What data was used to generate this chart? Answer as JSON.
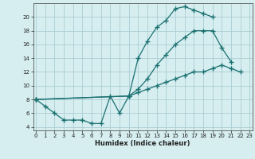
{
  "xlabel": "Humidex (Indice chaleur)",
  "bg_color": "#d6eef0",
  "grid_color": "#aacdd4",
  "line_color": "#1a7070",
  "line1_x": [
    0,
    1,
    2,
    3,
    4,
    5,
    6,
    7,
    8,
    9,
    10,
    11,
    12,
    13,
    14,
    15,
    16,
    17,
    18,
    19
  ],
  "line1_y": [
    8,
    7,
    6,
    5,
    5,
    5,
    4.5,
    4.5,
    8.5,
    6,
    8.5,
    14,
    16.5,
    18.5,
    19.5,
    21.2,
    21.5,
    21.0,
    20.5,
    20.0
  ],
  "line2_x": [
    0,
    10,
    11,
    12,
    13,
    14,
    15,
    16,
    17,
    18,
    19,
    20,
    21
  ],
  "line2_y": [
    8,
    8.5,
    9.5,
    11,
    13,
    14.5,
    16,
    17,
    18,
    18,
    18,
    15.5,
    13.5
  ],
  "line3_x": [
    0,
    10,
    11,
    12,
    13,
    14,
    15,
    16,
    17,
    18,
    19,
    20,
    21,
    22
  ],
  "line3_y": [
    8,
    8.5,
    9,
    9.5,
    10,
    10.5,
    11,
    11.5,
    12,
    12,
    12.5,
    13,
    12.5,
    12
  ],
  "xlim": [
    -0.3,
    23.3
  ],
  "ylim": [
    3.5,
    22.0
  ],
  "yticks": [
    4,
    6,
    8,
    10,
    12,
    14,
    16,
    18,
    20
  ],
  "xticks": [
    0,
    1,
    2,
    3,
    4,
    5,
    6,
    7,
    8,
    9,
    10,
    11,
    12,
    13,
    14,
    15,
    16,
    17,
    18,
    19,
    20,
    21,
    22,
    23
  ]
}
